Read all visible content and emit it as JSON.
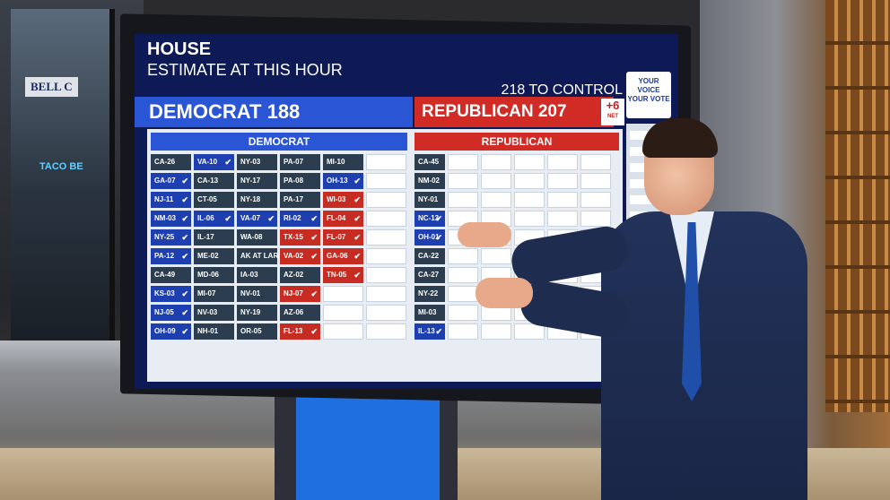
{
  "background": {
    "sign_bell": "BELL C",
    "sign_taco": "TACO BE"
  },
  "screen": {
    "title": "HOUSE",
    "subtitle": "ESTIMATE AT THIS HOUR",
    "control": "218 TO CONTROL",
    "logo": "YOUR VOICE YOUR VOTE",
    "democrat_total": "DEMOCRAT 188",
    "republican_total": "REPUBLICAN 207",
    "net_value": "+6",
    "net_label": "NET",
    "democrat_panel": {
      "header": "DEMOCRAT",
      "columns": [
        [
          {
            "id": "CA-26",
            "s": "n"
          },
          {
            "id": "GA-07",
            "s": "d"
          },
          {
            "id": "NJ-11",
            "s": "d"
          },
          {
            "id": "NM-03",
            "s": "d"
          },
          {
            "id": "NY-25",
            "s": "d"
          },
          {
            "id": "PA-12",
            "s": "d"
          },
          {
            "id": "CA-49",
            "s": "n"
          },
          {
            "id": "KS-03",
            "s": "d"
          },
          {
            "id": "NJ-05",
            "s": "d"
          },
          {
            "id": "OH-09",
            "s": "d"
          }
        ],
        [
          {
            "id": "VA-10",
            "s": "d"
          },
          {
            "id": "CA-13",
            "s": "n"
          },
          {
            "id": "CT-05",
            "s": "n"
          },
          {
            "id": "IL-06",
            "s": "d"
          },
          {
            "id": "IL-17",
            "s": "n"
          },
          {
            "id": "ME-02",
            "s": "n"
          },
          {
            "id": "MD-06",
            "s": "n"
          },
          {
            "id": "MI-07",
            "s": "n"
          },
          {
            "id": "NV-03",
            "s": "n"
          },
          {
            "id": "NH-01",
            "s": "n"
          }
        ],
        [
          {
            "id": "NY-03",
            "s": "n"
          },
          {
            "id": "NY-17",
            "s": "n"
          },
          {
            "id": "NY-18",
            "s": "n"
          },
          {
            "id": "VA-07",
            "s": "d"
          },
          {
            "id": "WA-08",
            "s": "n"
          },
          {
            "id": "AK AT LARGE",
            "s": "n"
          },
          {
            "id": "IA-03",
            "s": "n"
          },
          {
            "id": "NV-01",
            "s": "n"
          },
          {
            "id": "NY-19",
            "s": "n"
          },
          {
            "id": "OR-05",
            "s": "n"
          }
        ],
        [
          {
            "id": "PA-07",
            "s": "n"
          },
          {
            "id": "PA-08",
            "s": "n"
          },
          {
            "id": "PA-17",
            "s": "n"
          },
          {
            "id": "RI-02",
            "s": "d"
          },
          {
            "id": "TX-15",
            "s": "r"
          },
          {
            "id": "VA-02",
            "s": "r"
          },
          {
            "id": "AZ-02",
            "s": "n"
          },
          {
            "id": "NJ-07",
            "s": "r"
          },
          {
            "id": "AZ-06",
            "s": "n"
          },
          {
            "id": "FL-13",
            "s": "r"
          }
        ],
        [
          {
            "id": "MI-10",
            "s": "n"
          },
          {
            "id": "OH-13",
            "s": "d"
          },
          {
            "id": "WI-03",
            "s": "r"
          },
          {
            "id": "FL-04",
            "s": "r"
          },
          {
            "id": "FL-07",
            "s": "r"
          },
          {
            "id": "GA-06",
            "s": "r"
          },
          {
            "id": "TN-05",
            "s": "r"
          },
          {
            "id": "",
            "s": "e"
          },
          {
            "id": "",
            "s": "e"
          },
          {
            "id": "",
            "s": "e"
          }
        ]
      ]
    },
    "republican_panel": {
      "header": "REPUBLICAN",
      "districts": [
        {
          "id": "CA-45",
          "s": "n"
        },
        {
          "id": "NM-02",
          "s": "n"
        },
        {
          "id": "NY-01",
          "s": "n"
        },
        {
          "id": "NC-13",
          "s": "d"
        },
        {
          "id": "OH-01",
          "s": "d"
        },
        {
          "id": "CA-22",
          "s": "n"
        },
        {
          "id": "CA-27",
          "s": "n"
        },
        {
          "id": "NY-22",
          "s": "n"
        },
        {
          "id": "MI-03",
          "s": "n"
        },
        {
          "id": "IL-13",
          "s": "d"
        }
      ]
    }
  }
}
